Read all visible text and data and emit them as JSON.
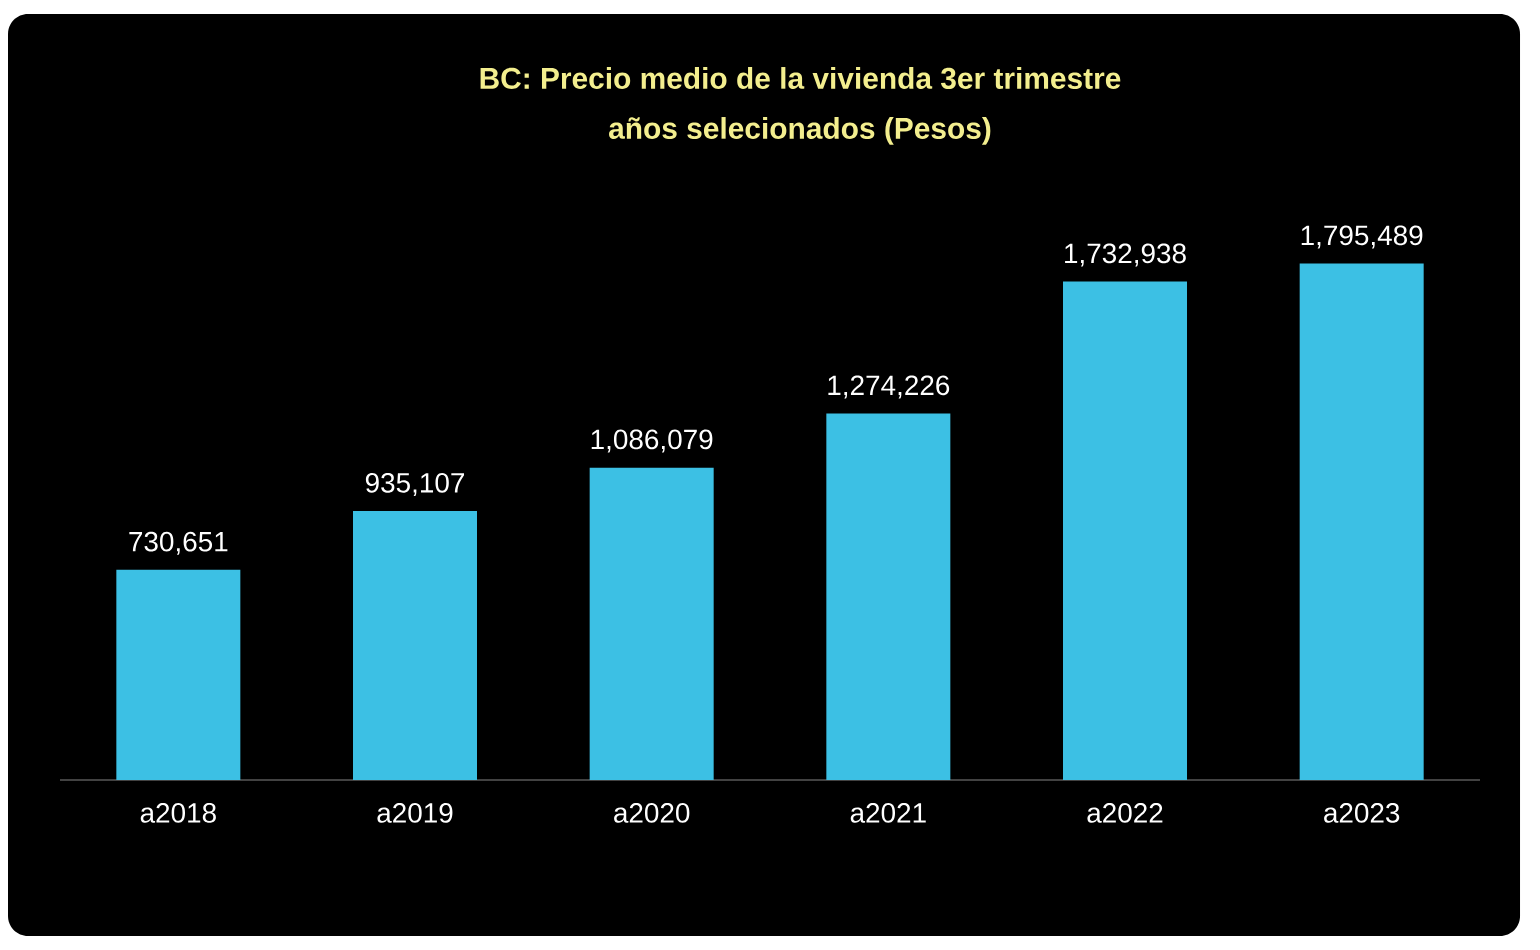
{
  "chart_data": {
    "type": "bar",
    "title": "BC: Precio medio de la vivienda 3er trimestre",
    "subtitle": "años selecionados  (Pesos)",
    "categories": [
      "a2018",
      "a2019",
      "a2020",
      "a2021",
      "a2022",
      "a2023"
    ],
    "values": [
      730651,
      935107,
      1086079,
      1274226,
      1732938,
      1795489
    ],
    "value_labels": [
      "730,651",
      "935,107",
      "1,086,079",
      "1,274,226",
      "1,732,938",
      "1,795,489"
    ],
    "color": "#3cc0e4",
    "tick_labels": "x"
  }
}
